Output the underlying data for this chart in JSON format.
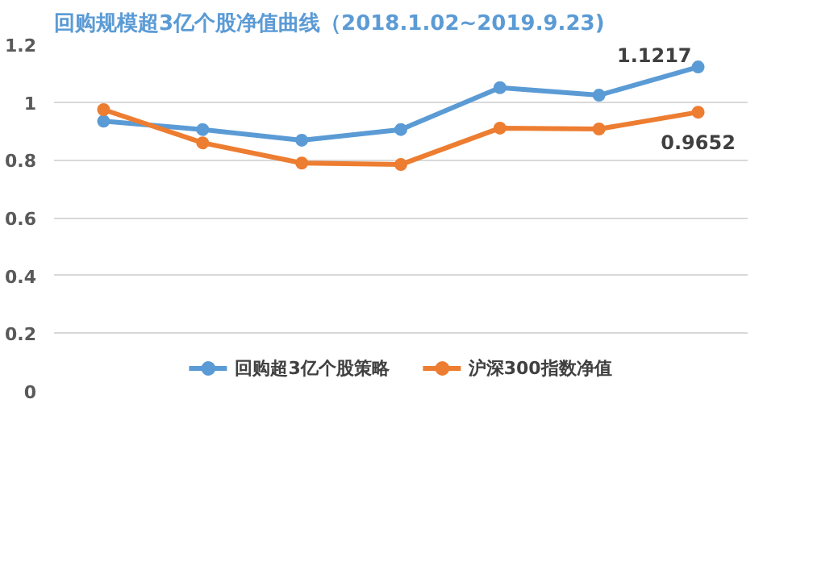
{
  "chart_data": {
    "type": "line",
    "title": "回购规模超3亿个股净值曲线（2018.1.02~2019.9.23)",
    "categories": [
      null,
      null,
      null,
      null,
      null,
      null,
      null
    ],
    "series": [
      {
        "name": "回购超3亿个股策略",
        "color": "#5b9bd5",
        "values": [
          0.934,
          0.905,
          0.868,
          0.905,
          1.05,
          1.024,
          1.1217
        ],
        "value_labels": [
          null,
          null,
          null,
          null,
          null,
          null,
          "1.1217"
        ]
      },
      {
        "name": "沪深300指数净值",
        "color": "#ed7d31",
        "values": [
          0.974,
          0.859,
          0.789,
          0.784,
          0.91,
          0.907,
          0.9652
        ],
        "value_labels": [
          null,
          null,
          null,
          null,
          null,
          null,
          "0.9652"
        ]
      }
    ],
    "ylim": [
      0,
      1.2
    ],
    "yticks": [
      0,
      0.2,
      0.4,
      0.6,
      0.8,
      1,
      1.2
    ],
    "grid": "y",
    "legend": "bottom",
    "marker": "circle",
    "line_style": "solid"
  }
}
